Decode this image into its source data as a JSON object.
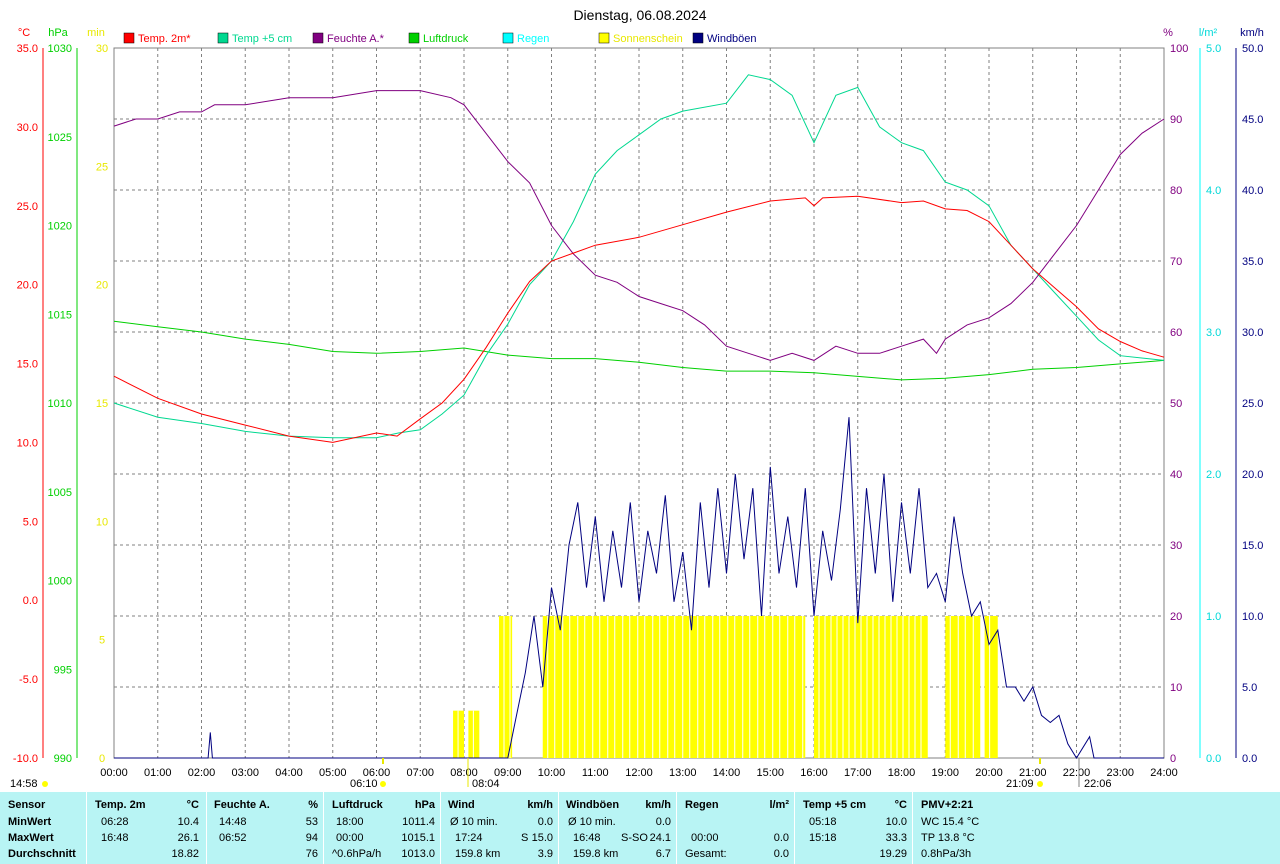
{
  "chart_data": {
    "type": "line",
    "title": "Dienstag, 06.08.2024",
    "colors": {
      "temp2m": "#ff0000",
      "temp5cm": "#00d890",
      "humidity": "#800080",
      "pressure": "#00d000",
      "rain": "#00ffff",
      "sun": "#ffff00",
      "gust": "#000080",
      "grid": "#808080"
    },
    "legend": [
      {
        "label": "Temp. 2m*",
        "color": "#ff0000"
      },
      {
        "label": "Temp +5 cm",
        "color": "#00d890"
      },
      {
        "label": "Feuchte A.*",
        "color": "#800080"
      },
      {
        "label": "Luftdruck",
        "color": "#00d000"
      },
      {
        "label": "Regen",
        "color": "#00ffff"
      },
      {
        "label": "Sonnenschein",
        "color": "#ffff00"
      },
      {
        "label": "Windböen",
        "color": "#000080"
      }
    ],
    "x_ticks": [
      "00:00",
      "01:00",
      "02:00",
      "03:00",
      "04:00",
      "05:00",
      "06:00",
      "07:00",
      "08:00",
      "09:00",
      "10:00",
      "11:00",
      "12:00",
      "13:00",
      "14:00",
      "15:00",
      "16:00",
      "17:00",
      "18:00",
      "19:00",
      "20:00",
      "21:00",
      "22:00",
      "23:00",
      "24:00"
    ],
    "axes": {
      "temp": {
        "unit": "°C",
        "ticks": [
          "35.0",
          "30.0",
          "25.0",
          "20.0",
          "15.0",
          "10.0",
          "5.0",
          "0.0",
          "-5.0",
          "-10.0"
        ],
        "range": [
          -10,
          35
        ],
        "color": "#ff0000"
      },
      "pressure": {
        "unit": "hPa",
        "ticks": [
          "1030",
          "1025",
          "1020",
          "1015",
          "1010",
          "1005",
          "1000",
          "995",
          "990"
        ],
        "range": [
          990,
          1030
        ],
        "color": "#00d000"
      },
      "sun": {
        "unit": "min",
        "ticks": [
          "30",
          "25",
          "20",
          "15",
          "10",
          "5",
          "0"
        ],
        "range": [
          0,
          30
        ],
        "color": "#ffff00"
      },
      "humidity": {
        "unit": "%",
        "ticks": [
          "100",
          "90",
          "80",
          "70",
          "60",
          "50",
          "40",
          "30",
          "20",
          "10",
          "0"
        ],
        "range": [
          0,
          100
        ],
        "color": "#800080"
      },
      "rain": {
        "unit": "l/m²",
        "ticks": [
          "5.0",
          "4.0",
          "3.0",
          "2.0",
          "1.0",
          "0.0"
        ],
        "range": [
          0,
          5
        ],
        "color": "#00ffff"
      },
      "gust": {
        "unit": "km/h",
        "ticks": [
          "50.0",
          "45.0",
          "40.0",
          "35.0",
          "30.0",
          "25.0",
          "20.0",
          "15.0",
          "10.0",
          "5.0",
          "0.0"
        ],
        "range": [
          0,
          50
        ],
        "color": "#000080"
      }
    },
    "temp2m": [
      [
        0,
        14.2
      ],
      [
        1,
        12.8
      ],
      [
        2,
        11.8
      ],
      [
        3,
        11.1
      ],
      [
        4,
        10.4
      ],
      [
        5,
        10.0
      ],
      [
        6,
        10.6
      ],
      [
        6.47,
        10.4
      ],
      [
        7,
        11.5
      ],
      [
        7.5,
        12.5
      ],
      [
        8,
        14.0
      ],
      [
        8.5,
        16.0
      ],
      [
        9,
        18.2
      ],
      [
        9.5,
        20.2
      ],
      [
        10,
        21.5
      ],
      [
        10.5,
        22.0
      ],
      [
        11,
        22.5
      ],
      [
        12,
        23.0
      ],
      [
        13,
        23.8
      ],
      [
        14,
        24.6
      ],
      [
        15,
        25.3
      ],
      [
        15.8,
        25.5
      ],
      [
        16,
        25.0
      ],
      [
        16.2,
        25.5
      ],
      [
        17,
        25.6
      ],
      [
        18,
        25.2
      ],
      [
        18.5,
        25.3
      ],
      [
        19,
        24.8
      ],
      [
        19.5,
        24.7
      ],
      [
        20,
        24.0
      ],
      [
        20.5,
        22.5
      ],
      [
        21,
        21.0
      ],
      [
        21.5,
        19.8
      ],
      [
        22,
        18.6
      ],
      [
        22.5,
        17.2
      ],
      [
        23,
        16.4
      ],
      [
        23.5,
        15.8
      ],
      [
        24,
        15.4
      ]
    ],
    "temp5cm": [
      [
        0,
        12.5
      ],
      [
        1,
        11.6
      ],
      [
        2,
        11.2
      ],
      [
        3,
        10.7
      ],
      [
        4,
        10.4
      ],
      [
        5,
        10.3
      ],
      [
        6,
        10.3
      ],
      [
        6.5,
        10.6
      ],
      [
        7,
        10.8
      ],
      [
        7.5,
        11.8
      ],
      [
        8,
        13.0
      ],
      [
        8.5,
        15.5
      ],
      [
        9,
        17.5
      ],
      [
        9.5,
        20.0
      ],
      [
        10,
        21.5
      ],
      [
        10.5,
        24.0
      ],
      [
        11,
        27.0
      ],
      [
        11.5,
        28.5
      ],
      [
        12,
        29.5
      ],
      [
        12.5,
        30.5
      ],
      [
        13,
        31.0
      ],
      [
        14,
        31.5
      ],
      [
        14.5,
        33.3
      ],
      [
        15,
        33.0
      ],
      [
        15.5,
        32.0
      ],
      [
        16,
        29.0
      ],
      [
        16.5,
        32.0
      ],
      [
        17,
        32.5
      ],
      [
        17.5,
        30.0
      ],
      [
        18,
        29.0
      ],
      [
        18.5,
        28.5
      ],
      [
        19,
        26.5
      ],
      [
        19.5,
        26.0
      ],
      [
        20,
        25.0
      ],
      [
        20.5,
        22.5
      ],
      [
        21,
        21.0
      ],
      [
        21.5,
        19.5
      ],
      [
        22,
        18.0
      ],
      [
        22.5,
        16.5
      ],
      [
        23,
        15.5
      ],
      [
        24,
        15.2
      ]
    ],
    "humidity": [
      [
        0,
        89
      ],
      [
        0.5,
        90
      ],
      [
        1,
        90
      ],
      [
        1.5,
        91
      ],
      [
        2,
        91
      ],
      [
        2.3,
        92
      ],
      [
        3,
        92
      ],
      [
        4,
        93
      ],
      [
        5,
        93
      ],
      [
        6,
        94
      ],
      [
        7,
        94
      ],
      [
        7.7,
        93
      ],
      [
        8,
        92
      ],
      [
        8.5,
        88
      ],
      [
        9,
        84
      ],
      [
        9.5,
        81
      ],
      [
        10,
        75
      ],
      [
        10.5,
        71
      ],
      [
        11,
        68
      ],
      [
        11.5,
        67
      ],
      [
        12,
        65
      ],
      [
        12.5,
        64
      ],
      [
        13,
        63
      ],
      [
        13.5,
        61
      ],
      [
        14,
        58
      ],
      [
        14.5,
        57
      ],
      [
        15,
        56
      ],
      [
        15.5,
        57
      ],
      [
        16,
        56
      ],
      [
        16.5,
        58
      ],
      [
        17,
        57
      ],
      [
        17.5,
        57
      ],
      [
        18,
        58
      ],
      [
        18.5,
        59
      ],
      [
        18.8,
        57
      ],
      [
        19,
        59
      ],
      [
        19.5,
        61
      ],
      [
        20,
        62
      ],
      [
        20.5,
        64
      ],
      [
        21,
        67
      ],
      [
        21.5,
        71
      ],
      [
        22,
        75
      ],
      [
        22.5,
        80
      ],
      [
        23,
        85
      ],
      [
        23.5,
        88
      ],
      [
        24,
        90
      ]
    ],
    "pressure": [
      [
        0,
        1014.6
      ],
      [
        1,
        1014.3
      ],
      [
        2,
        1014.0
      ],
      [
        3,
        1013.6
      ],
      [
        4,
        1013.3
      ],
      [
        5,
        1012.9
      ],
      [
        6,
        1012.8
      ],
      [
        7,
        1012.9
      ],
      [
        8,
        1013.1
      ],
      [
        9,
        1012.7
      ],
      [
        10,
        1012.5
      ],
      [
        11,
        1012.5
      ],
      [
        12,
        1012.3
      ],
      [
        13,
        1012.0
      ],
      [
        14,
        1011.8
      ],
      [
        15,
        1011.8
      ],
      [
        16,
        1011.7
      ],
      [
        17,
        1011.5
      ],
      [
        18,
        1011.3
      ],
      [
        19,
        1011.4
      ],
      [
        20,
        1011.6
      ],
      [
        21,
        1011.9
      ],
      [
        22,
        1012.0
      ],
      [
        23,
        1012.2
      ],
      [
        24,
        1012.4
      ]
    ],
    "gust": [
      [
        0,
        0
      ],
      [
        2.15,
        0
      ],
      [
        2.2,
        1.8
      ],
      [
        2.25,
        0
      ],
      [
        9.0,
        0
      ],
      [
        9.2,
        3.0
      ],
      [
        9.4,
        6.0
      ],
      [
        9.6,
        10.0
      ],
      [
        9.8,
        5.0
      ],
      [
        10.0,
        12.0
      ],
      [
        10.2,
        9.0
      ],
      [
        10.4,
        15.0
      ],
      [
        10.6,
        18.0
      ],
      [
        10.8,
        12.0
      ],
      [
        11.0,
        17.0
      ],
      [
        11.2,
        11.0
      ],
      [
        11.4,
        16.0
      ],
      [
        11.6,
        12.0
      ],
      [
        11.8,
        18.0
      ],
      [
        12.0,
        11.0
      ],
      [
        12.2,
        16.0
      ],
      [
        12.4,
        13.0
      ],
      [
        12.6,
        18.5
      ],
      [
        12.8,
        11.0
      ],
      [
        13.0,
        14.5
      ],
      [
        13.2,
        9.0
      ],
      [
        13.4,
        18.0
      ],
      [
        13.6,
        12.0
      ],
      [
        13.8,
        19.0
      ],
      [
        14.0,
        13.0
      ],
      [
        14.2,
        20.0
      ],
      [
        14.4,
        14.0
      ],
      [
        14.6,
        19.0
      ],
      [
        14.8,
        10.0
      ],
      [
        15.0,
        20.5
      ],
      [
        15.2,
        13.0
      ],
      [
        15.4,
        17.0
      ],
      [
        15.6,
        12.0
      ],
      [
        15.8,
        19.0
      ],
      [
        16.0,
        10.0
      ],
      [
        16.2,
        16.0
      ],
      [
        16.4,
        12.5
      ],
      [
        16.6,
        17.5
      ],
      [
        16.8,
        24.0
      ],
      [
        17.0,
        9.5
      ],
      [
        17.2,
        19.0
      ],
      [
        17.4,
        13.0
      ],
      [
        17.6,
        20.0
      ],
      [
        17.8,
        11.0
      ],
      [
        18.0,
        18.0
      ],
      [
        18.2,
        13.0
      ],
      [
        18.4,
        19.0
      ],
      [
        18.6,
        12.0
      ],
      [
        18.8,
        13.0
      ],
      [
        19.0,
        11.0
      ],
      [
        19.2,
        17.0
      ],
      [
        19.4,
        13.0
      ],
      [
        19.6,
        10.0
      ],
      [
        19.8,
        11.0
      ],
      [
        20.0,
        8.0
      ],
      [
        20.2,
        9.0
      ],
      [
        20.4,
        5.0
      ],
      [
        20.6,
        5.0
      ],
      [
        20.8,
        4.0
      ],
      [
        21.0,
        5.0
      ],
      [
        21.2,
        3.0
      ],
      [
        21.4,
        2.5
      ],
      [
        21.6,
        3.0
      ],
      [
        21.8,
        1.0
      ],
      [
        22.0,
        0
      ],
      [
        22.3,
        1.5
      ],
      [
        22.4,
        0
      ],
      [
        24,
        0
      ]
    ],
    "sunshine_blocks": [
      [
        7.75,
        8.0,
        2.0
      ],
      [
        8.1,
        8.35,
        2.0
      ],
      [
        8.8,
        9.1,
        6.0
      ],
      [
        9.8,
        15.8,
        6.0
      ],
      [
        16.0,
        18.6,
        6.0
      ],
      [
        19.0,
        19.8,
        6.0
      ],
      [
        19.9,
        20.2,
        6.0
      ]
    ],
    "bottom_labels": {
      "day_start": "14:58",
      "sunrise": "06:10",
      "sun_marker": "08:04",
      "sunset": "21:09",
      "day_end": "22:06"
    }
  },
  "stats": {
    "header": {
      "sensor": "Sensor",
      "temp2m": "Temp. 2m",
      "temp2m_unit": "°C",
      "hum": "Feuchte A.",
      "hum_unit": "%",
      "press": "Luftdruck",
      "press_unit": "hPa",
      "wind": "Wind",
      "wind_unit": "km/h",
      "gust": "Windböen",
      "gust_unit": "km/h",
      "rain": "Regen",
      "rain_unit": "l/m²",
      "t5": "Temp +5 cm",
      "t5_unit": "°C",
      "pmv": "PMV+2:21"
    },
    "row_labels": {
      "min": "MinWert",
      "max": "MaxWert",
      "avg": "Durchschnitt"
    },
    "temp2m": {
      "min_time": "06:28",
      "min": "10.4",
      "max_time": "16:48",
      "max": "26.1",
      "avg": "18.82"
    },
    "hum": {
      "min_time": "14:48",
      "min": "53",
      "max_time": "06:52",
      "max": "94",
      "avg": "76"
    },
    "press": {
      "min_time": "18:00",
      "min": "1011.4",
      "max_time": "00:00",
      "max": "1015.1",
      "avg_label": "^0.6hPa/h",
      "avg": "1013.0"
    },
    "wind": {
      "r1_label": "Ø 10 min.",
      "r1_val": "0.0",
      "r2_label": "17:24",
      "r2_dir": "S",
      "r2_val": "15.0",
      "r3_label": "159.8 km",
      "r3_val": "3.9"
    },
    "gust": {
      "r1_label": "Ø 10 min.",
      "r1_val": "0.0",
      "r2_label": "16:48",
      "r2_dir": "S-SO",
      "r2_val": "24.1",
      "r3_label": "159.8 km",
      "r3_val": "6.7"
    },
    "rain": {
      "r2_label": "00:00",
      "r2_val": "0.0",
      "r3_label": "Gesamt:",
      "r3_val": "0.0"
    },
    "t5": {
      "min_time": "05:18",
      "min": "10.0",
      "max_time": "15:18",
      "max": "33.3",
      "avg": "19.29"
    },
    "pmv": {
      "r1": "WC 15.4 °C",
      "r2": "TP 13.8 °C",
      "r3": "0.8hPa/3h"
    }
  }
}
